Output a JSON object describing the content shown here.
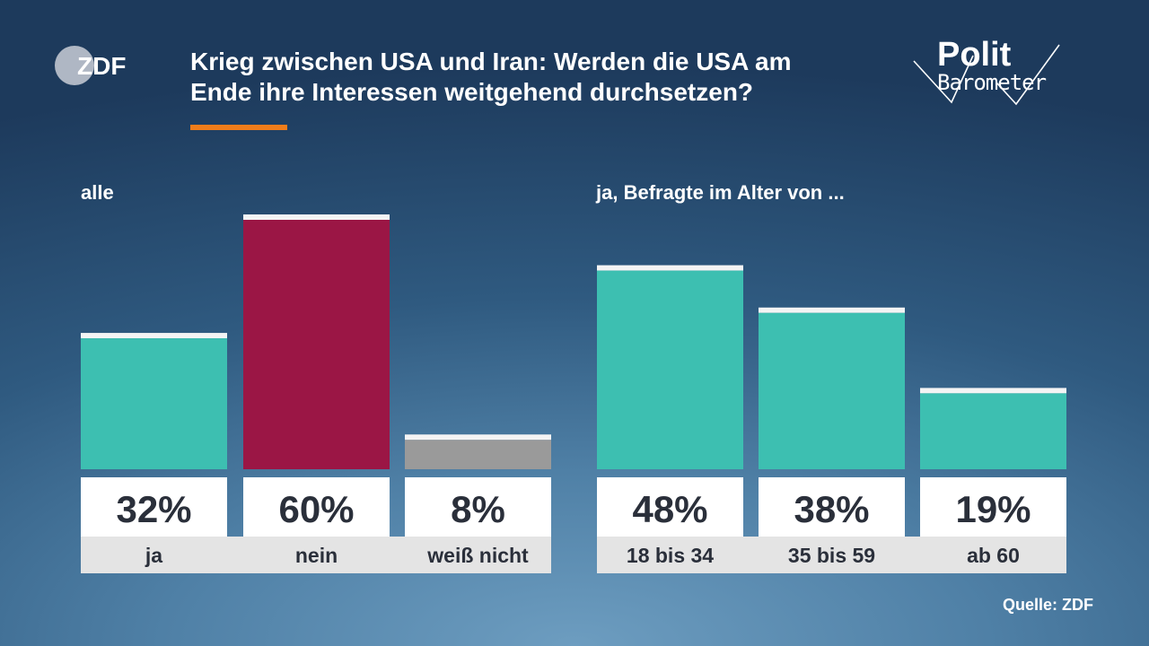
{
  "header": {
    "title_line1": "Krieg zwischen USA und Iran: Werden die USA am",
    "title_line2": "Ende ihre Interessen weitgehend durchsetzen?",
    "broadcaster_logo": "ZDF",
    "show_logo_line1": "Polit",
    "show_logo_line2": "Barometer"
  },
  "groups": {
    "all_label": "alle",
    "age_label": "ja, Befragte im Alter von ..."
  },
  "source": "Quelle: ZDF",
  "colors": {
    "ja": "#3dbfb1",
    "nein": "#9b1645",
    "weiss_nicht": "#9a9a9a",
    "accent": "#f07d1a",
    "cap": "#f4f4f4",
    "label_bg": "#e4e4e4",
    "value_text": "#2a2f3a"
  },
  "chart_data": [
    {
      "type": "bar",
      "group": "alle",
      "categories": [
        "ja",
        "nein",
        "weiß nicht"
      ],
      "values": [
        32,
        60,
        8
      ],
      "unit": "%",
      "ylim": [
        0,
        60
      ]
    },
    {
      "type": "bar",
      "group": "ja, Befragte im Alter von ...",
      "categories": [
        "18 bis 34",
        "35 bis 59",
        "ab 60"
      ],
      "values": [
        48,
        38,
        19
      ],
      "unit": "%",
      "ylim": [
        0,
        60
      ]
    }
  ]
}
